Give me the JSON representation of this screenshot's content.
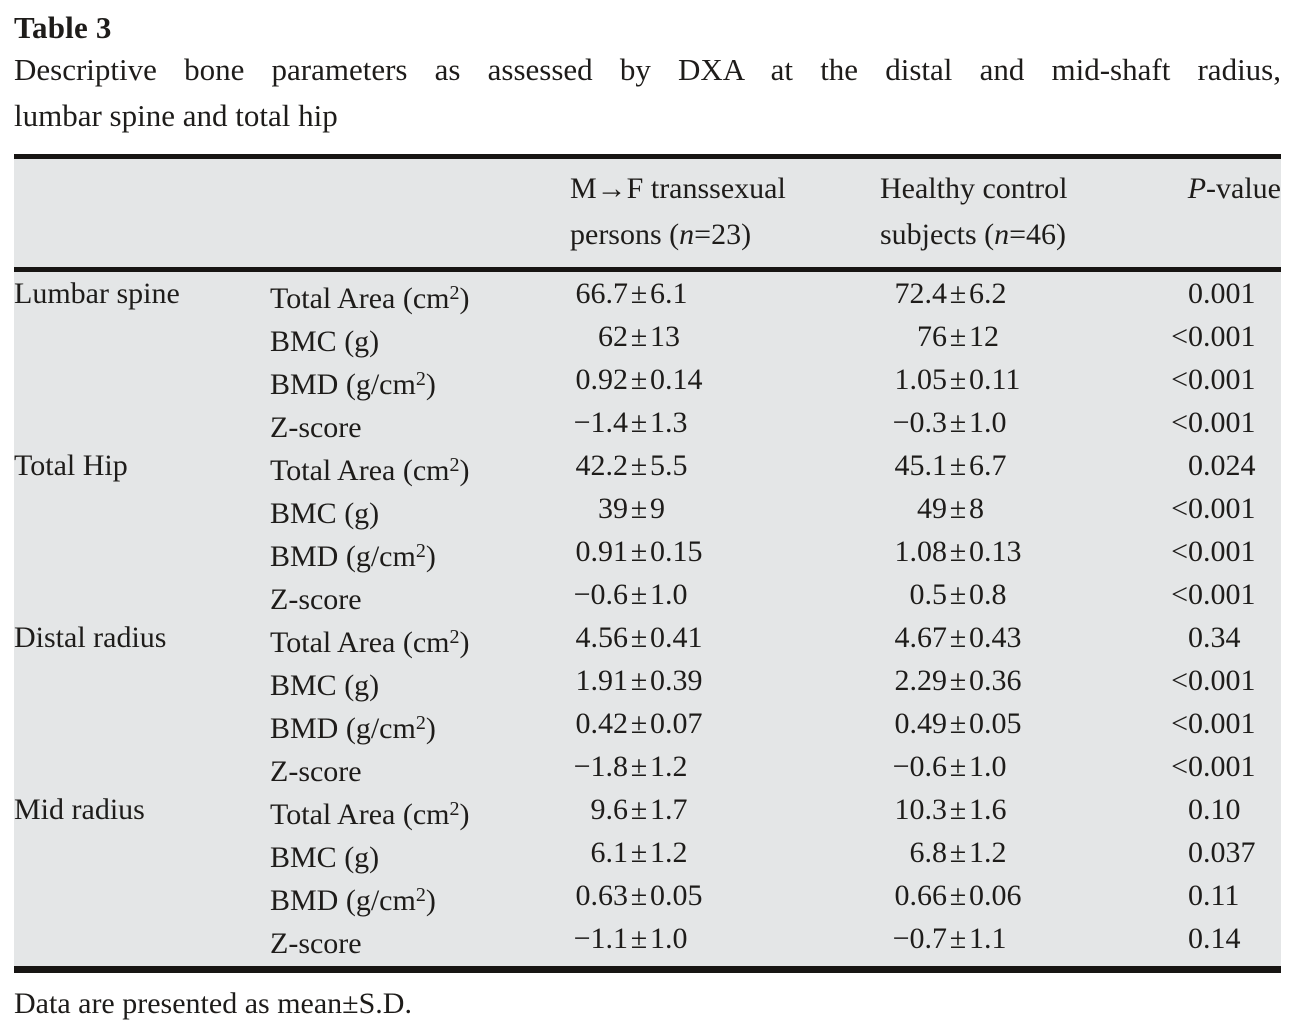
{
  "title": "Table 3",
  "caption_line1": "Descriptive bone parameters as assessed by DXA at the distal and mid-shaft radius,",
  "caption_line2": "lumbar spine and total hip",
  "sym": {
    "pm": "±"
  },
  "header": {
    "col3_line1": "M→F transsexual",
    "col3_line2_pre": "persons (",
    "col3_n": "n",
    "col3_line2_post": "=23)",
    "col4_line1": "Healthy control",
    "col4_line2_pre": "subjects (",
    "col4_n": "n",
    "col4_line2_post": "=46)",
    "col5_italic": "P",
    "col5_rest": "-value"
  },
  "rows": [
    {
      "group": "Lumbar spine",
      "param_pre": "Total Area (cm",
      "param_sup": "2",
      "param_post": ")",
      "mf_lo": "66.7",
      "mf_hi": "6.1",
      "hc_lo": "72.4",
      "hc_hi": "6.2",
      "p_pre": "",
      "p": "0.001"
    },
    {
      "group": "",
      "param_pre": "BMC (g)",
      "param_sup": "",
      "param_post": "",
      "mf_lo": "62",
      "mf_hi": "13",
      "hc_lo": "76",
      "hc_hi": "12",
      "p_pre": "<",
      "p": "0.001"
    },
    {
      "group": "",
      "param_pre": "BMD (g/cm",
      "param_sup": "2",
      "param_post": ")",
      "mf_lo": "0.92",
      "mf_hi": "0.14",
      "hc_lo": "1.05",
      "hc_hi": "0.11",
      "p_pre": "<",
      "p": "0.001"
    },
    {
      "group": "",
      "param_pre": "Z-score",
      "param_sup": "",
      "param_post": "",
      "mf_lo": "−1.4",
      "mf_hi": "1.3",
      "hc_lo": "−0.3",
      "hc_hi": "1.0",
      "p_pre": "<",
      "p": "0.001"
    },
    {
      "group": "Total Hip",
      "param_pre": "Total Area (cm",
      "param_sup": "2",
      "param_post": ")",
      "mf_lo": "42.2",
      "mf_hi": "5.5",
      "hc_lo": "45.1",
      "hc_hi": "6.7",
      "p_pre": "",
      "p": "0.024"
    },
    {
      "group": "",
      "param_pre": "BMC (g)",
      "param_sup": "",
      "param_post": "",
      "mf_lo": "39",
      "mf_hi": "9",
      "hc_lo": "49",
      "hc_hi": "8",
      "p_pre": "<",
      "p": "0.001"
    },
    {
      "group": "",
      "param_pre": "BMD (g/cm",
      "param_sup": "2",
      "param_post": ")",
      "mf_lo": "0.91",
      "mf_hi": "0.15",
      "hc_lo": "1.08",
      "hc_hi": "0.13",
      "p_pre": "<",
      "p": "0.001"
    },
    {
      "group": "",
      "param_pre": "Z-score",
      "param_sup": "",
      "param_post": "",
      "mf_lo": "−0.6",
      "mf_hi": "1.0",
      "hc_lo": "0.5",
      "hc_hi": "0.8",
      "p_pre": "<",
      "p": "0.001"
    },
    {
      "group": "Distal radius",
      "param_pre": "Total Area (cm",
      "param_sup": "2",
      "param_post": ")",
      "mf_lo": "4.56",
      "mf_hi": "0.41",
      "hc_lo": "4.67",
      "hc_hi": "0.43",
      "p_pre": "",
      "p": "0.34"
    },
    {
      "group": "",
      "param_pre": "BMC (g)",
      "param_sup": "",
      "param_post": "",
      "mf_lo": "1.91",
      "mf_hi": "0.39",
      "hc_lo": "2.29",
      "hc_hi": "0.36",
      "p_pre": "<",
      "p": "0.001"
    },
    {
      "group": "",
      "param_pre": "BMD (g/cm",
      "param_sup": "2",
      "param_post": ")",
      "mf_lo": "0.42",
      "mf_hi": "0.07",
      "hc_lo": "0.49",
      "hc_hi": "0.05",
      "p_pre": "<",
      "p": "0.001"
    },
    {
      "group": "",
      "param_pre": "Z-score",
      "param_sup": "",
      "param_post": "",
      "mf_lo": "−1.8",
      "mf_hi": "1.2",
      "hc_lo": "−0.6",
      "hc_hi": "1.0",
      "p_pre": "<",
      "p": "0.001"
    },
    {
      "group": "Mid radius",
      "param_pre": "Total Area (cm",
      "param_sup": "2",
      "param_post": ")",
      "mf_lo": "9.6",
      "mf_hi": "1.7",
      "hc_lo": "10.3",
      "hc_hi": "1.6",
      "p_pre": "",
      "p": "0.10"
    },
    {
      "group": "",
      "param_pre": "BMC (g)",
      "param_sup": "",
      "param_post": "",
      "mf_lo": "6.1",
      "mf_hi": "1.2",
      "hc_lo": "6.8",
      "hc_hi": "1.2",
      "p_pre": "",
      "p": "0.037"
    },
    {
      "group": "",
      "param_pre": "BMD (g/cm",
      "param_sup": "2",
      "param_post": ")",
      "mf_lo": "0.63",
      "mf_hi": "0.05",
      "hc_lo": "0.66",
      "hc_hi": "0.06",
      "p_pre": "",
      "p": "0.11"
    },
    {
      "group": "",
      "param_pre": "Z-score",
      "param_sup": "",
      "param_post": "",
      "mf_lo": "−1.1",
      "mf_hi": "1.0",
      "hc_lo": "−0.7",
      "hc_hi": "1.1",
      "p_pre": "",
      "p": "0.14"
    }
  ],
  "footnote": "Data are presented as mean±S.D.",
  "colors": {
    "table_background": "#e4e6e7",
    "rule": "#171513",
    "text": "#1e1c1a",
    "page_background": "#ffffff"
  }
}
